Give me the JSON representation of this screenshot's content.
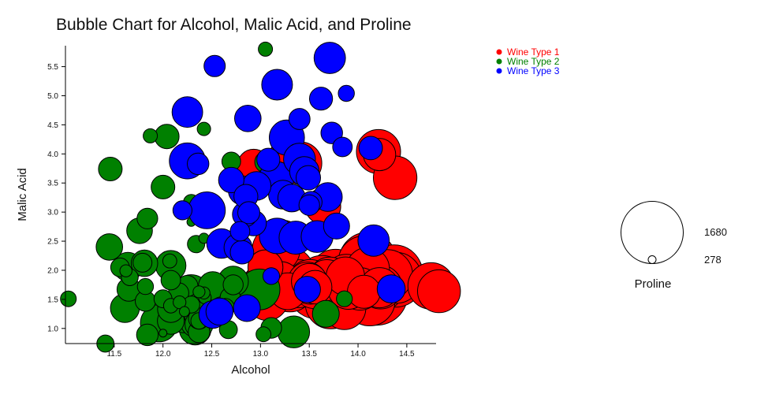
{
  "chart_data": {
    "type": "scatter",
    "title": "Bubble Chart for Alcohol, Malic Acid, and Proline",
    "xlabel": "Alcohol",
    "ylabel": "Malic Acid",
    "xlim": [
      11.0,
      14.8
    ],
    "ylim": [
      0.74,
      5.86
    ],
    "x_ticks": [
      "11.5",
      "12.0",
      "12.5",
      "13.0",
      "13.5",
      "14.0",
      "14.5"
    ],
    "y_ticks": [
      "1.0",
      "1.5",
      "2.0",
      "2.5",
      "3.0",
      "3.5",
      "4.0",
      "4.5",
      "5.0",
      "5.5"
    ],
    "grid": false,
    "legend_position": "top-right",
    "size_variable": "Proline",
    "size_legend": {
      "label": "Proline",
      "max_value": "1680",
      "min_value": "278"
    },
    "series": [
      {
        "name": "Wine Type 1",
        "color": "#ff0000",
        "points": [
          [
            14.23,
            1.71,
            1065
          ],
          [
            13.2,
            1.78,
            1050
          ],
          [
            13.16,
            2.36,
            1185
          ],
          [
            14.37,
            1.95,
            1480
          ],
          [
            13.24,
            2.59,
            735
          ],
          [
            14.2,
            1.76,
            1450
          ],
          [
            14.39,
            1.87,
            1290
          ],
          [
            14.06,
            2.15,
            1295
          ],
          [
            14.83,
            1.64,
            1045
          ],
          [
            13.86,
            1.35,
            1045
          ],
          [
            14.1,
            2.16,
            1510
          ],
          [
            14.12,
            1.48,
            1280
          ],
          [
            13.75,
            1.73,
            1320
          ],
          [
            14.75,
            1.73,
            1150
          ],
          [
            14.38,
            1.87,
            1547
          ],
          [
            13.63,
            1.81,
            1310
          ],
          [
            14.3,
            1.92,
            1280
          ],
          [
            13.83,
            1.57,
            1130
          ],
          [
            14.19,
            1.59,
            1680
          ],
          [
            13.64,
            3.1,
            845
          ],
          [
            14.06,
            1.63,
            780
          ],
          [
            12.93,
            3.8,
            770
          ],
          [
            13.71,
            1.86,
            1035
          ],
          [
            12.85,
            1.6,
            1015
          ],
          [
            13.5,
            1.81,
            845
          ],
          [
            13.05,
            2.05,
            830
          ],
          [
            13.39,
            1.77,
            1195
          ],
          [
            13.3,
            1.72,
            1285
          ],
          [
            13.87,
            1.9,
            915
          ],
          [
            14.02,
            1.68,
            1035
          ],
          [
            13.73,
            1.5,
            1285
          ],
          [
            13.58,
            1.66,
            1515
          ],
          [
            13.68,
            1.83,
            990
          ],
          [
            13.76,
            1.53,
            1235
          ],
          [
            13.51,
            1.8,
            1095
          ],
          [
            13.48,
            1.81,
            920
          ],
          [
            13.28,
            1.64,
            880
          ],
          [
            13.05,
            1.65,
            1105
          ],
          [
            13.07,
            1.5,
            1020
          ],
          [
            14.22,
            3.99,
            760
          ],
          [
            13.56,
            1.71,
            795
          ],
          [
            13.41,
            3.84,
            1035
          ],
          [
            13.88,
            1.89,
            1095
          ],
          [
            13.24,
            3.98,
            680
          ],
          [
            13.05,
            1.77,
            885
          ],
          [
            14.21,
            4.04,
            1080
          ],
          [
            14.38,
            3.59,
            1065
          ],
          [
            13.9,
            1.68,
            985
          ],
          [
            14.1,
            2.02,
            1060
          ],
          [
            13.94,
            1.73,
            1260
          ],
          [
            13.05,
            1.73,
            1150
          ],
          [
            13.83,
            1.65,
            1265
          ],
          [
            13.82,
            1.75,
            1190
          ],
          [
            13.77,
            1.9,
            1375
          ],
          [
            13.74,
            1.67,
            1060
          ],
          [
            13.56,
            1.73,
            1120
          ],
          [
            14.22,
            1.7,
            970
          ],
          [
            13.29,
            1.97,
            1270
          ],
          [
            13.72,
            1.43,
            1285
          ]
        ]
      },
      {
        "name": "Wine Type 2",
        "color": "#008000",
        "points": [
          [
            12.37,
            0.94,
            520
          ],
          [
            12.33,
            1.1,
            680
          ],
          [
            12.64,
            1.36,
            450
          ],
          [
            13.67,
            1.25,
            630
          ],
          [
            12.37,
            1.13,
            420
          ],
          [
            12.17,
            1.45,
            355
          ],
          [
            12.37,
            1.21,
            678
          ],
          [
            13.11,
            1.01,
            502
          ],
          [
            12.37,
            1.17,
            510
          ],
          [
            13.34,
            0.94,
            750
          ],
          [
            12.21,
            1.19,
            718
          ],
          [
            12.29,
            1.61,
            870
          ],
          [
            13.86,
            1.51,
            410
          ],
          [
            13.49,
            1.66,
            472
          ],
          [
            12.99,
            1.67,
            985
          ],
          [
            11.96,
            1.09,
            886
          ],
          [
            11.66,
            1.88,
            428
          ],
          [
            13.03,
            0.9,
            392
          ],
          [
            11.84,
            2.89,
            500
          ],
          [
            12.33,
            0.99,
            750
          ],
          [
            12.7,
            3.87,
            463
          ],
          [
            12.0,
            0.92,
            278
          ],
          [
            12.72,
            1.81,
            714
          ],
          [
            12.08,
            1.13,
            630
          ],
          [
            13.05,
            3.86,
            515
          ],
          [
            11.84,
            0.89,
            520
          ],
          [
            12.67,
            0.98,
            450
          ],
          [
            12.16,
            1.61,
            495
          ],
          [
            11.65,
            1.67,
            562
          ],
          [
            11.64,
            2.06,
            680
          ],
          [
            12.08,
            1.33,
            625
          ],
          [
            12.08,
            1.83,
            480
          ],
          [
            12.0,
            1.51,
            450
          ],
          [
            12.69,
            1.53,
            495
          ],
          [
            12.29,
            2.83,
            290
          ],
          [
            11.62,
            1.99,
            345
          ],
          [
            12.47,
            1.52,
            937
          ],
          [
            11.81,
            2.12,
            625
          ],
          [
            12.29,
            1.41,
            428
          ],
          [
            12.37,
            1.07,
            660
          ],
          [
            12.29,
            3.17,
            406
          ],
          [
            12.08,
            2.08,
            710
          ],
          [
            12.6,
            1.34,
            562
          ],
          [
            12.34,
            2.45,
            438
          ],
          [
            11.82,
            1.72,
            415
          ],
          [
            12.51,
            1.73,
            672
          ],
          [
            12.42,
            2.55,
            315
          ],
          [
            12.25,
            1.73,
            510
          ],
          [
            12.72,
            1.75,
            488
          ],
          [
            12.22,
            1.29,
            312
          ],
          [
            11.61,
            1.35,
            680
          ],
          [
            11.46,
            3.74,
            562
          ],
          [
            12.52,
            2.43,
            325
          ],
          [
            11.76,
            2.68,
            607
          ],
          [
            11.41,
            0.74,
            434
          ],
          [
            12.08,
            1.39,
            385
          ],
          [
            11.03,
            1.51,
            407
          ],
          [
            11.82,
            1.47,
            495
          ],
          [
            12.42,
            1.61,
            345
          ],
          [
            12.77,
            3.43,
            372
          ],
          [
            12.0,
            3.43,
            564
          ],
          [
            11.45,
            2.4,
            625
          ],
          [
            11.56,
            2.05,
            465
          ],
          [
            12.42,
            4.43,
            365
          ],
          [
            13.05,
            5.8,
            380
          ],
          [
            11.87,
            4.31,
            380
          ],
          [
            12.07,
            2.16,
            378
          ],
          [
            12.43,
            1.53,
            352
          ],
          [
            11.79,
            2.13,
            466
          ],
          [
            12.37,
            1.63,
            342
          ],
          [
            12.04,
            4.3,
            580
          ]
        ]
      },
      {
        "name": "Wine Type 3",
        "color": "#0000ff",
        "points": [
          [
            12.86,
            1.35,
            630
          ],
          [
            12.88,
            2.99,
            530
          ],
          [
            12.81,
            2.31,
            560
          ],
          [
            12.7,
            3.55,
            600
          ],
          [
            12.51,
            1.24,
            650
          ],
          [
            12.6,
            2.46,
            695
          ],
          [
            12.25,
            4.72,
            720
          ],
          [
            12.53,
            5.51,
            515
          ],
          [
            13.49,
            3.59,
            580
          ],
          [
            12.84,
            2.96,
            590
          ],
          [
            12.93,
            2.81,
            600
          ],
          [
            13.36,
            2.56,
            780
          ],
          [
            13.52,
            3.17,
            520
          ],
          [
            13.62,
            4.95,
            550
          ],
          [
            12.25,
            3.88,
            855
          ],
          [
            13.16,
            3.57,
            830
          ],
          [
            13.88,
            5.04,
            415
          ],
          [
            12.87,
            4.61,
            625
          ],
          [
            13.32,
            3.24,
            650
          ],
          [
            13.08,
            3.9,
            550
          ],
          [
            13.5,
            3.12,
            500
          ],
          [
            12.79,
            2.67,
            480
          ],
          [
            13.11,
            1.9,
            425
          ],
          [
            13.23,
            3.3,
            675
          ],
          [
            12.58,
            1.29,
            640
          ],
          [
            13.17,
            5.19,
            725
          ],
          [
            13.84,
            4.12,
            480
          ],
          [
            12.45,
            3.03,
            880
          ],
          [
            14.34,
            1.68,
            660
          ],
          [
            13.48,
            1.67,
            620
          ],
          [
            12.36,
            3.83,
            520
          ],
          [
            13.69,
            3.26,
            680
          ],
          [
            12.85,
            3.27,
            570
          ],
          [
            12.96,
            3.45,
            675
          ],
          [
            13.78,
            2.76,
            615
          ],
          [
            13.73,
            4.36,
            520
          ],
          [
            13.45,
            3.7,
            695
          ],
          [
            12.82,
            3.37,
            685
          ],
          [
            13.58,
            2.58,
            750
          ],
          [
            13.4,
            4.6,
            510
          ],
          [
            12.2,
            3.03,
            470
          ],
          [
            12.77,
            2.39,
            660
          ],
          [
            14.16,
            2.51,
            740
          ],
          [
            13.71,
            5.65,
            740
          ],
          [
            13.4,
            3.91,
            750
          ],
          [
            13.27,
            4.28,
            835
          ],
          [
            13.17,
            2.59,
            840
          ],
          [
            14.13,
            4.1,
            560
          ]
        ]
      }
    ]
  }
}
